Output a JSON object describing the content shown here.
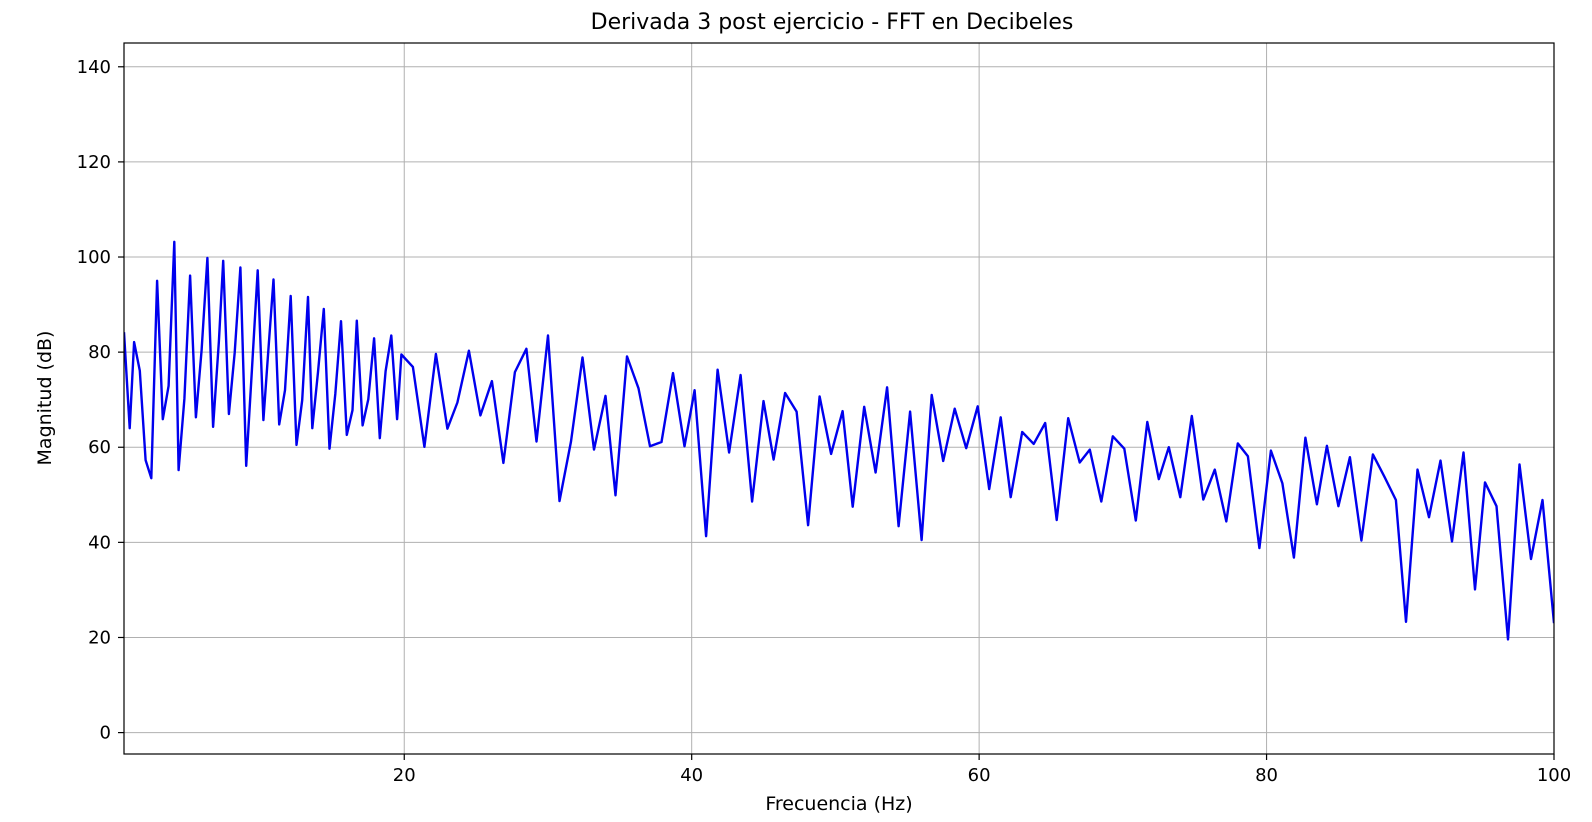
{
  "chart_data": {
    "type": "line",
    "title": "Derivada 3 post ejercicio - FFT en Decibeles",
    "xlabel": "Frecuencia (Hz)",
    "ylabel": "Magnitud (dB)",
    "xlim": [
      0.5,
      100
    ],
    "ylim": [
      -4.5,
      145
    ],
    "x_ticks": [
      20,
      40,
      60,
      80,
      100
    ],
    "y_ticks": [
      0,
      20,
      40,
      60,
      80,
      100,
      120,
      140
    ],
    "x_tick_labels": [
      "20",
      "40",
      "60",
      "80",
      "100"
    ],
    "y_tick_labels": [
      "0",
      "20",
      "40",
      "60",
      "80",
      "100",
      "120",
      "140"
    ],
    "grid": true,
    "series": [
      {
        "color": "#0000ee",
        "x": [
          0.5,
          0.9,
          1.2,
          1.6,
          2.0,
          2.4,
          2.8,
          3.2,
          3.6,
          4.0,
          4.3,
          4.7,
          5.1,
          5.5,
          5.9,
          6.3,
          6.7,
          7.1,
          7.4,
          7.8,
          8.2,
          8.6,
          9.0,
          9.4,
          9.8,
          10.2,
          10.5,
          10.9,
          11.3,
          11.7,
          12.1,
          12.5,
          12.9,
          13.3,
          13.6,
          14.0,
          14.4,
          14.8,
          15.2,
          15.6,
          16.0,
          16.4,
          16.7,
          17.1,
          17.5,
          17.9,
          18.3,
          18.7,
          19.1,
          19.5,
          19.8,
          20.6,
          21.4,
          22.2,
          23.0,
          23.7,
          24.5,
          25.3,
          26.1,
          26.9,
          27.7,
          28.5,
          29.2,
          30.0,
          30.8,
          31.6,
          32.4,
          33.2,
          34.0,
          34.7,
          35.5,
          36.3,
          37.1,
          37.9,
          38.7,
          39.5,
          40.2,
          41.0,
          41.8,
          42.6,
          43.4,
          44.2,
          45.0,
          45.7,
          46.5,
          47.3,
          48.1,
          48.9,
          49.7,
          50.5,
          51.2,
          52.0,
          52.8,
          53.6,
          54.4,
          55.2,
          56.0,
          56.7,
          57.5,
          58.3,
          59.1,
          59.9,
          60.7,
          61.5,
          62.2,
          63.0,
          63.8,
          64.6,
          65.4,
          66.2,
          67.0,
          67.7,
          68.5,
          69.3,
          70.1,
          70.9,
          71.7,
          72.5,
          73.2,
          74.0,
          74.8,
          75.6,
          76.4,
          77.2,
          78.0,
          78.7,
          79.5,
          80.3,
          81.1,
          81.9,
          82.7,
          83.5,
          84.2,
          85.0,
          85.8,
          86.6,
          87.4,
          88.2,
          89.0,
          89.7,
          90.5,
          91.3,
          92.1,
          92.9,
          93.7,
          94.5,
          95.2,
          96.0,
          96.8,
          97.6,
          98.4,
          99.2,
          100.0
        ],
        "y": [
          84.2,
          64.0,
          82.1,
          76.1,
          57.3,
          53.5,
          95.0,
          65.9,
          72.9,
          103.2,
          55.2,
          70.2,
          96.1,
          66.3,
          80.4,
          99.8,
          64.3,
          82.3,
          99.2,
          67.0,
          79.9,
          97.8,
          56.1,
          76.2,
          97.2,
          65.7,
          78.5,
          95.3,
          64.8,
          72.0,
          91.8,
          60.5,
          69.9,
          91.6,
          64.0,
          75.8,
          89.1,
          59.7,
          71.2,
          86.5,
          62.6,
          67.8,
          86.6,
          64.6,
          70.1,
          82.9,
          61.9,
          76.0,
          83.5,
          65.9,
          79.5,
          76.9,
          60.1,
          79.6,
          63.9,
          69.4,
          80.3,
          66.7,
          73.9,
          56.7,
          75.8,
          80.7,
          61.2,
          83.5,
          48.7,
          61.2,
          78.9,
          59.5,
          70.8,
          49.9,
          79.1,
          72.4,
          60.2,
          61.1,
          75.6,
          60.2,
          72.0,
          41.3,
          76.3,
          58.9,
          75.2,
          48.6,
          69.7,
          57.4,
          71.4,
          67.5,
          43.6,
          70.7,
          58.6,
          67.6,
          47.5,
          68.5,
          54.7,
          72.6,
          43.4,
          67.5,
          40.5,
          71.0,
          57.1,
          68.1,
          59.8,
          68.6,
          51.2,
          66.3,
          49.5,
          63.2,
          60.7,
          65.1,
          44.7,
          66.1,
          56.8,
          59.5,
          48.6,
          62.3,
          59.7,
          44.6,
          65.3,
          53.3,
          60.0,
          49.5,
          66.6,
          49.0,
          55.3,
          44.4,
          60.8,
          58.1,
          38.8,
          59.3,
          52.4,
          36.8,
          62.0,
          48.0,
          60.3,
          47.6,
          57.9,
          40.4,
          58.5,
          53.8,
          48.9,
          23.3,
          55.3,
          45.3,
          57.2,
          40.2,
          58.9,
          30.1,
          52.6,
          47.6,
          19.6,
          56.4,
          36.5,
          48.9,
          23.0
        ]
      }
    ]
  }
}
